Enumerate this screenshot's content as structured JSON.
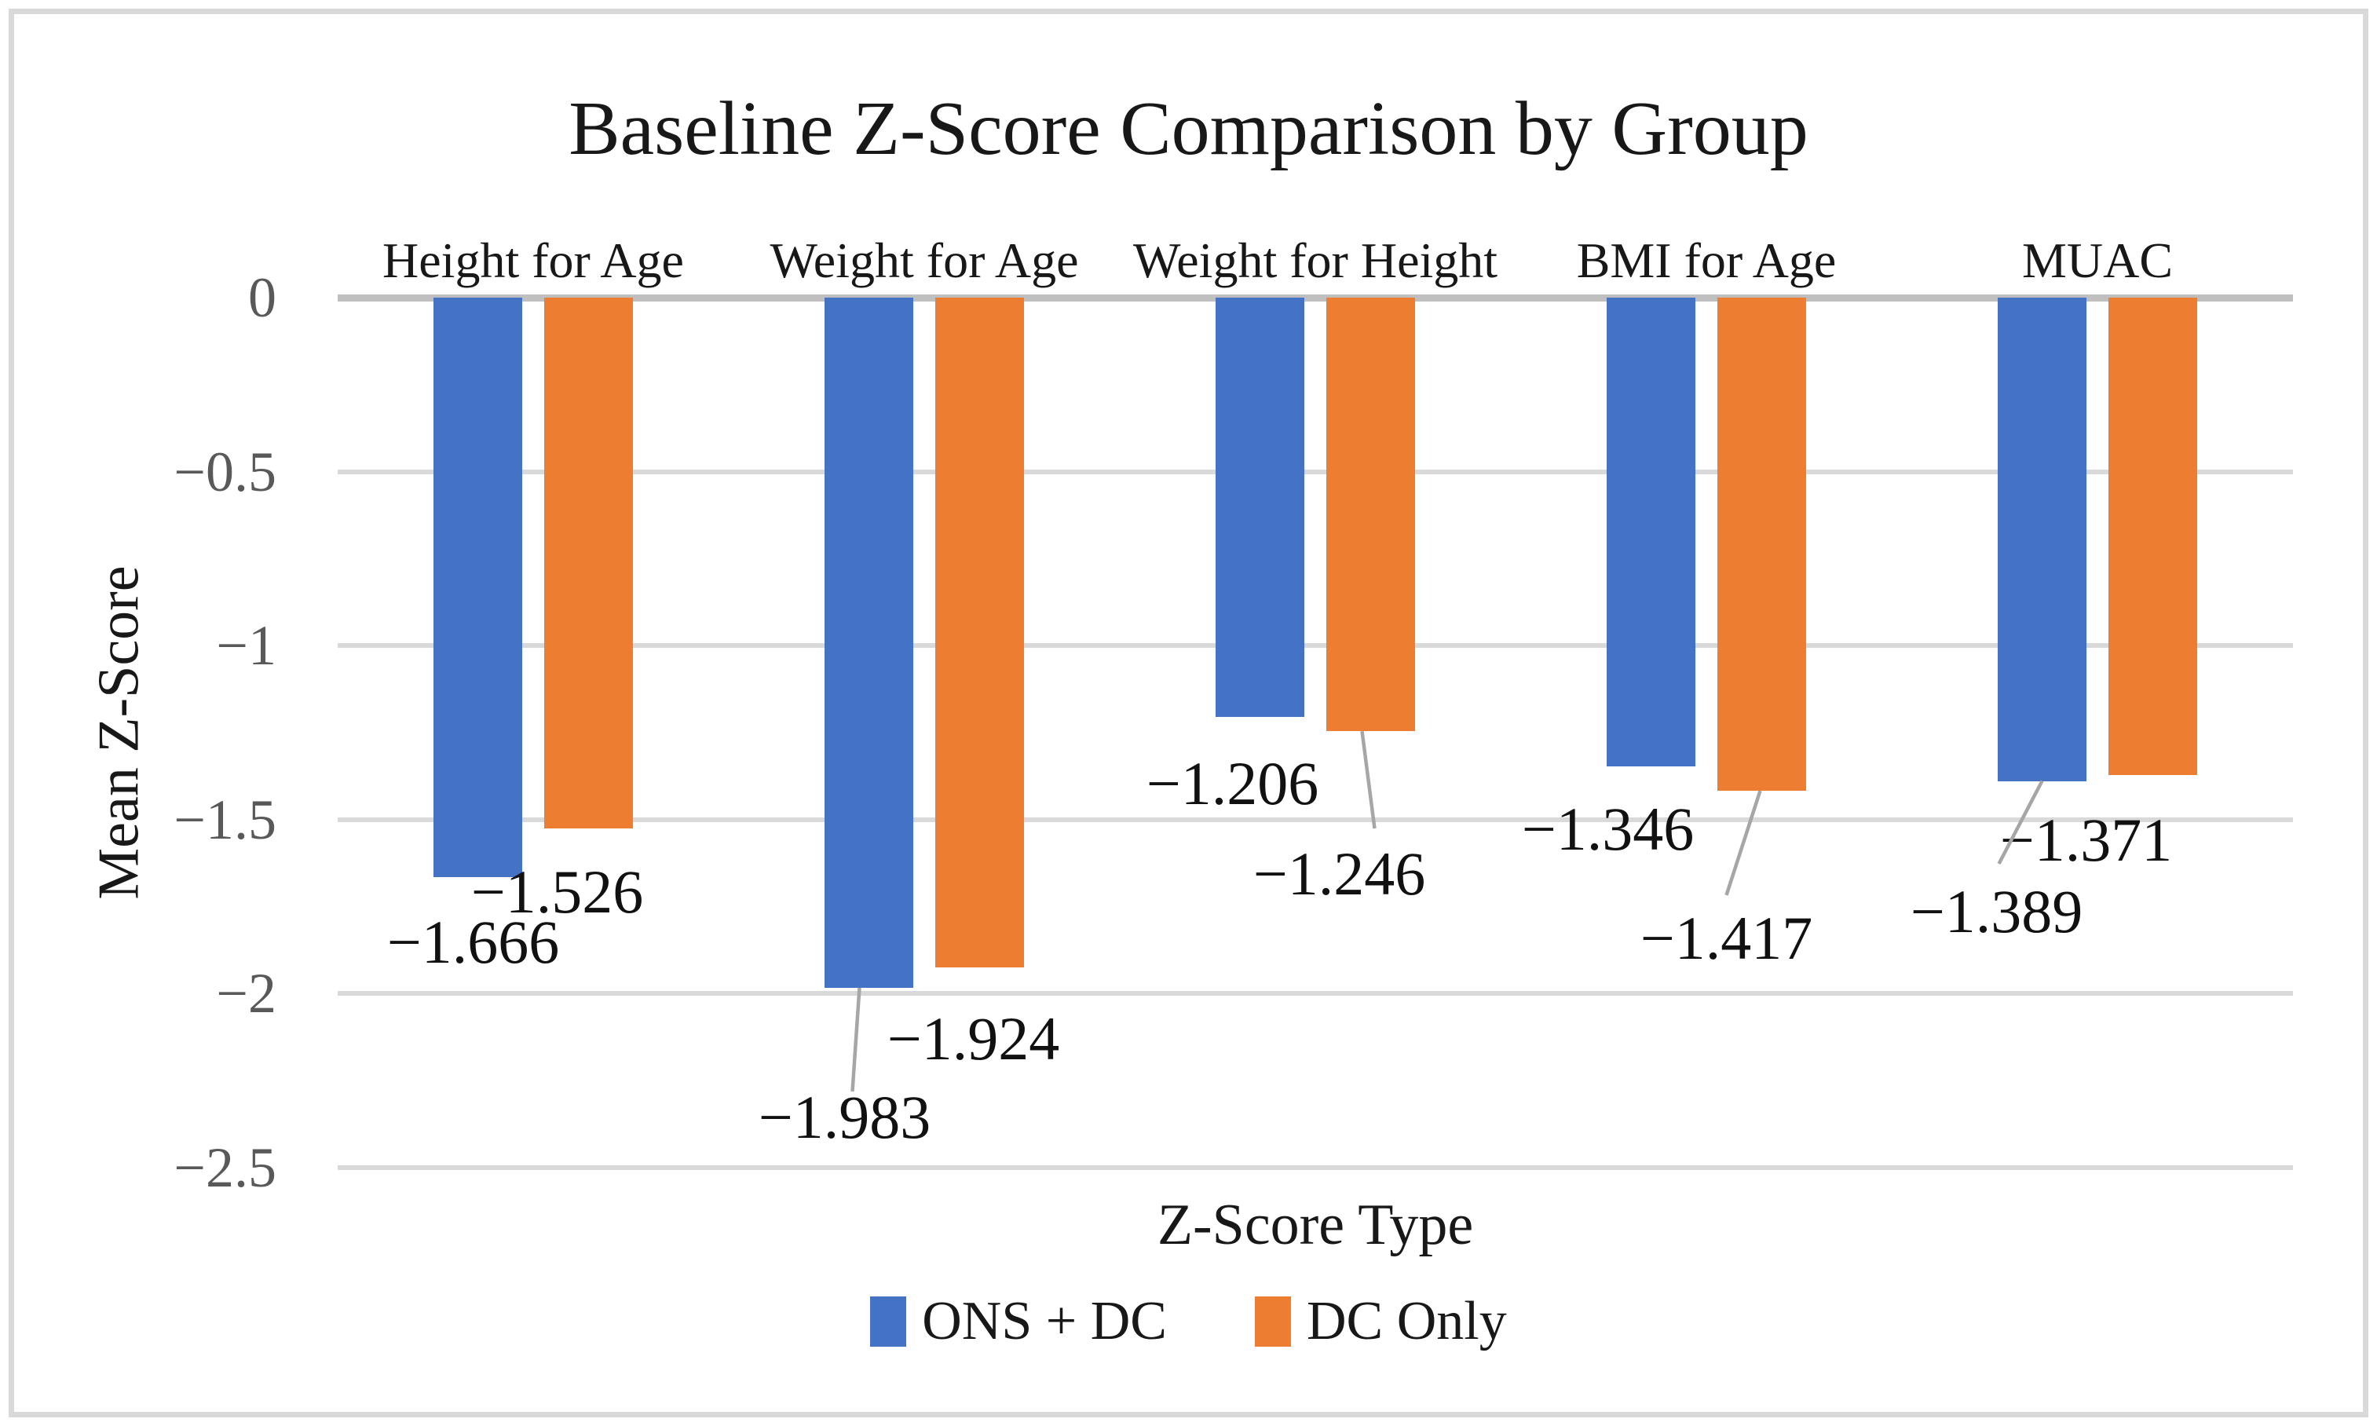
{
  "title": "Baseline Z-Score Comparison by Group",
  "axes": {
    "x_title": "Z-Score Type",
    "y_title": "Mean Z-Score",
    "y_tick_labels": [
      "0",
      "−0.5",
      "−1",
      "−1.5",
      "−2",
      "−2.5"
    ]
  },
  "legend": {
    "items": [
      {
        "label": "ONS + DC",
        "color": "#4472C4"
      },
      {
        "label": "DC Only",
        "color": "#ED7D31"
      }
    ]
  },
  "colors": {
    "series_blue": "#4472C4",
    "series_orange": "#ED7D31",
    "gridline": "#D9D9D9",
    "zero_line": "#BFBFBF",
    "leader_line": "#A6A6A6",
    "tick_text": "#595959",
    "text": "#181818",
    "frame_border": "#D9D9D9",
    "background": "#FFFFFF"
  },
  "chart_data": {
    "type": "bar",
    "title": "Baseline Z-Score Comparison by Group",
    "xlabel": "Z-Score Type",
    "ylabel": "Mean Z-Score",
    "categories": [
      "Height for Age",
      "Weight for Age",
      "Weight for Height",
      "BMI for Age",
      "MUAC"
    ],
    "series": [
      {
        "name": "ONS + DC",
        "color": "#4472C4",
        "values": [
          -1.666,
          -1.983,
          -1.206,
          -1.346,
          -1.389
        ],
        "data_labels": [
          "−1.666",
          "−1.983",
          "−1.206",
          "−1.346",
          "−1.389"
        ]
      },
      {
        "name": "DC Only",
        "color": "#ED7D31",
        "values": [
          -1.526,
          -1.924,
          -1.246,
          -1.417,
          -1.371
        ],
        "data_labels": [
          "−1.526",
          "−1.924",
          "−1.246",
          "−1.417",
          "−1.371"
        ]
      }
    ],
    "ylim": [
      -2.5,
      0
    ],
    "yticks": [
      0,
      -0.5,
      -1,
      -1.5,
      -2,
      -2.5
    ],
    "grid": true,
    "legend_position": "bottom",
    "label_layout": [
      [
        {
          "dx": -6,
          "y": 1177,
          "leader": null
        },
        {
          "dx": -31,
          "y": 1400,
          "leader": {
            "s": -12,
            "ex": 10,
            "ey": -10
          }
        },
        {
          "dx": -35,
          "y": 975,
          "leader": null
        },
        {
          "dx": -55,
          "y": 1033,
          "leader": null
        },
        {
          "dx": -58,
          "y": 1138,
          "leader": {
            "s": 0,
            "ex": 3,
            "ey": -38
          }
        }
      ],
      [
        {
          "dx": -40,
          "y": 1113,
          "leader": null
        },
        {
          "dx": -8,
          "y": 1300,
          "leader": null
        },
        {
          "dx": -40,
          "y": 1090,
          "leader": {
            "s": -11,
            "ex": 45,
            "ey": -35
          }
        },
        {
          "dx": -45,
          "y": 1172,
          "leader": {
            "s": -2,
            "ex": 0,
            "ey": -32
          }
        },
        {
          "dx": -85,
          "y": 1047,
          "leader": null
        }
      ]
    ]
  }
}
